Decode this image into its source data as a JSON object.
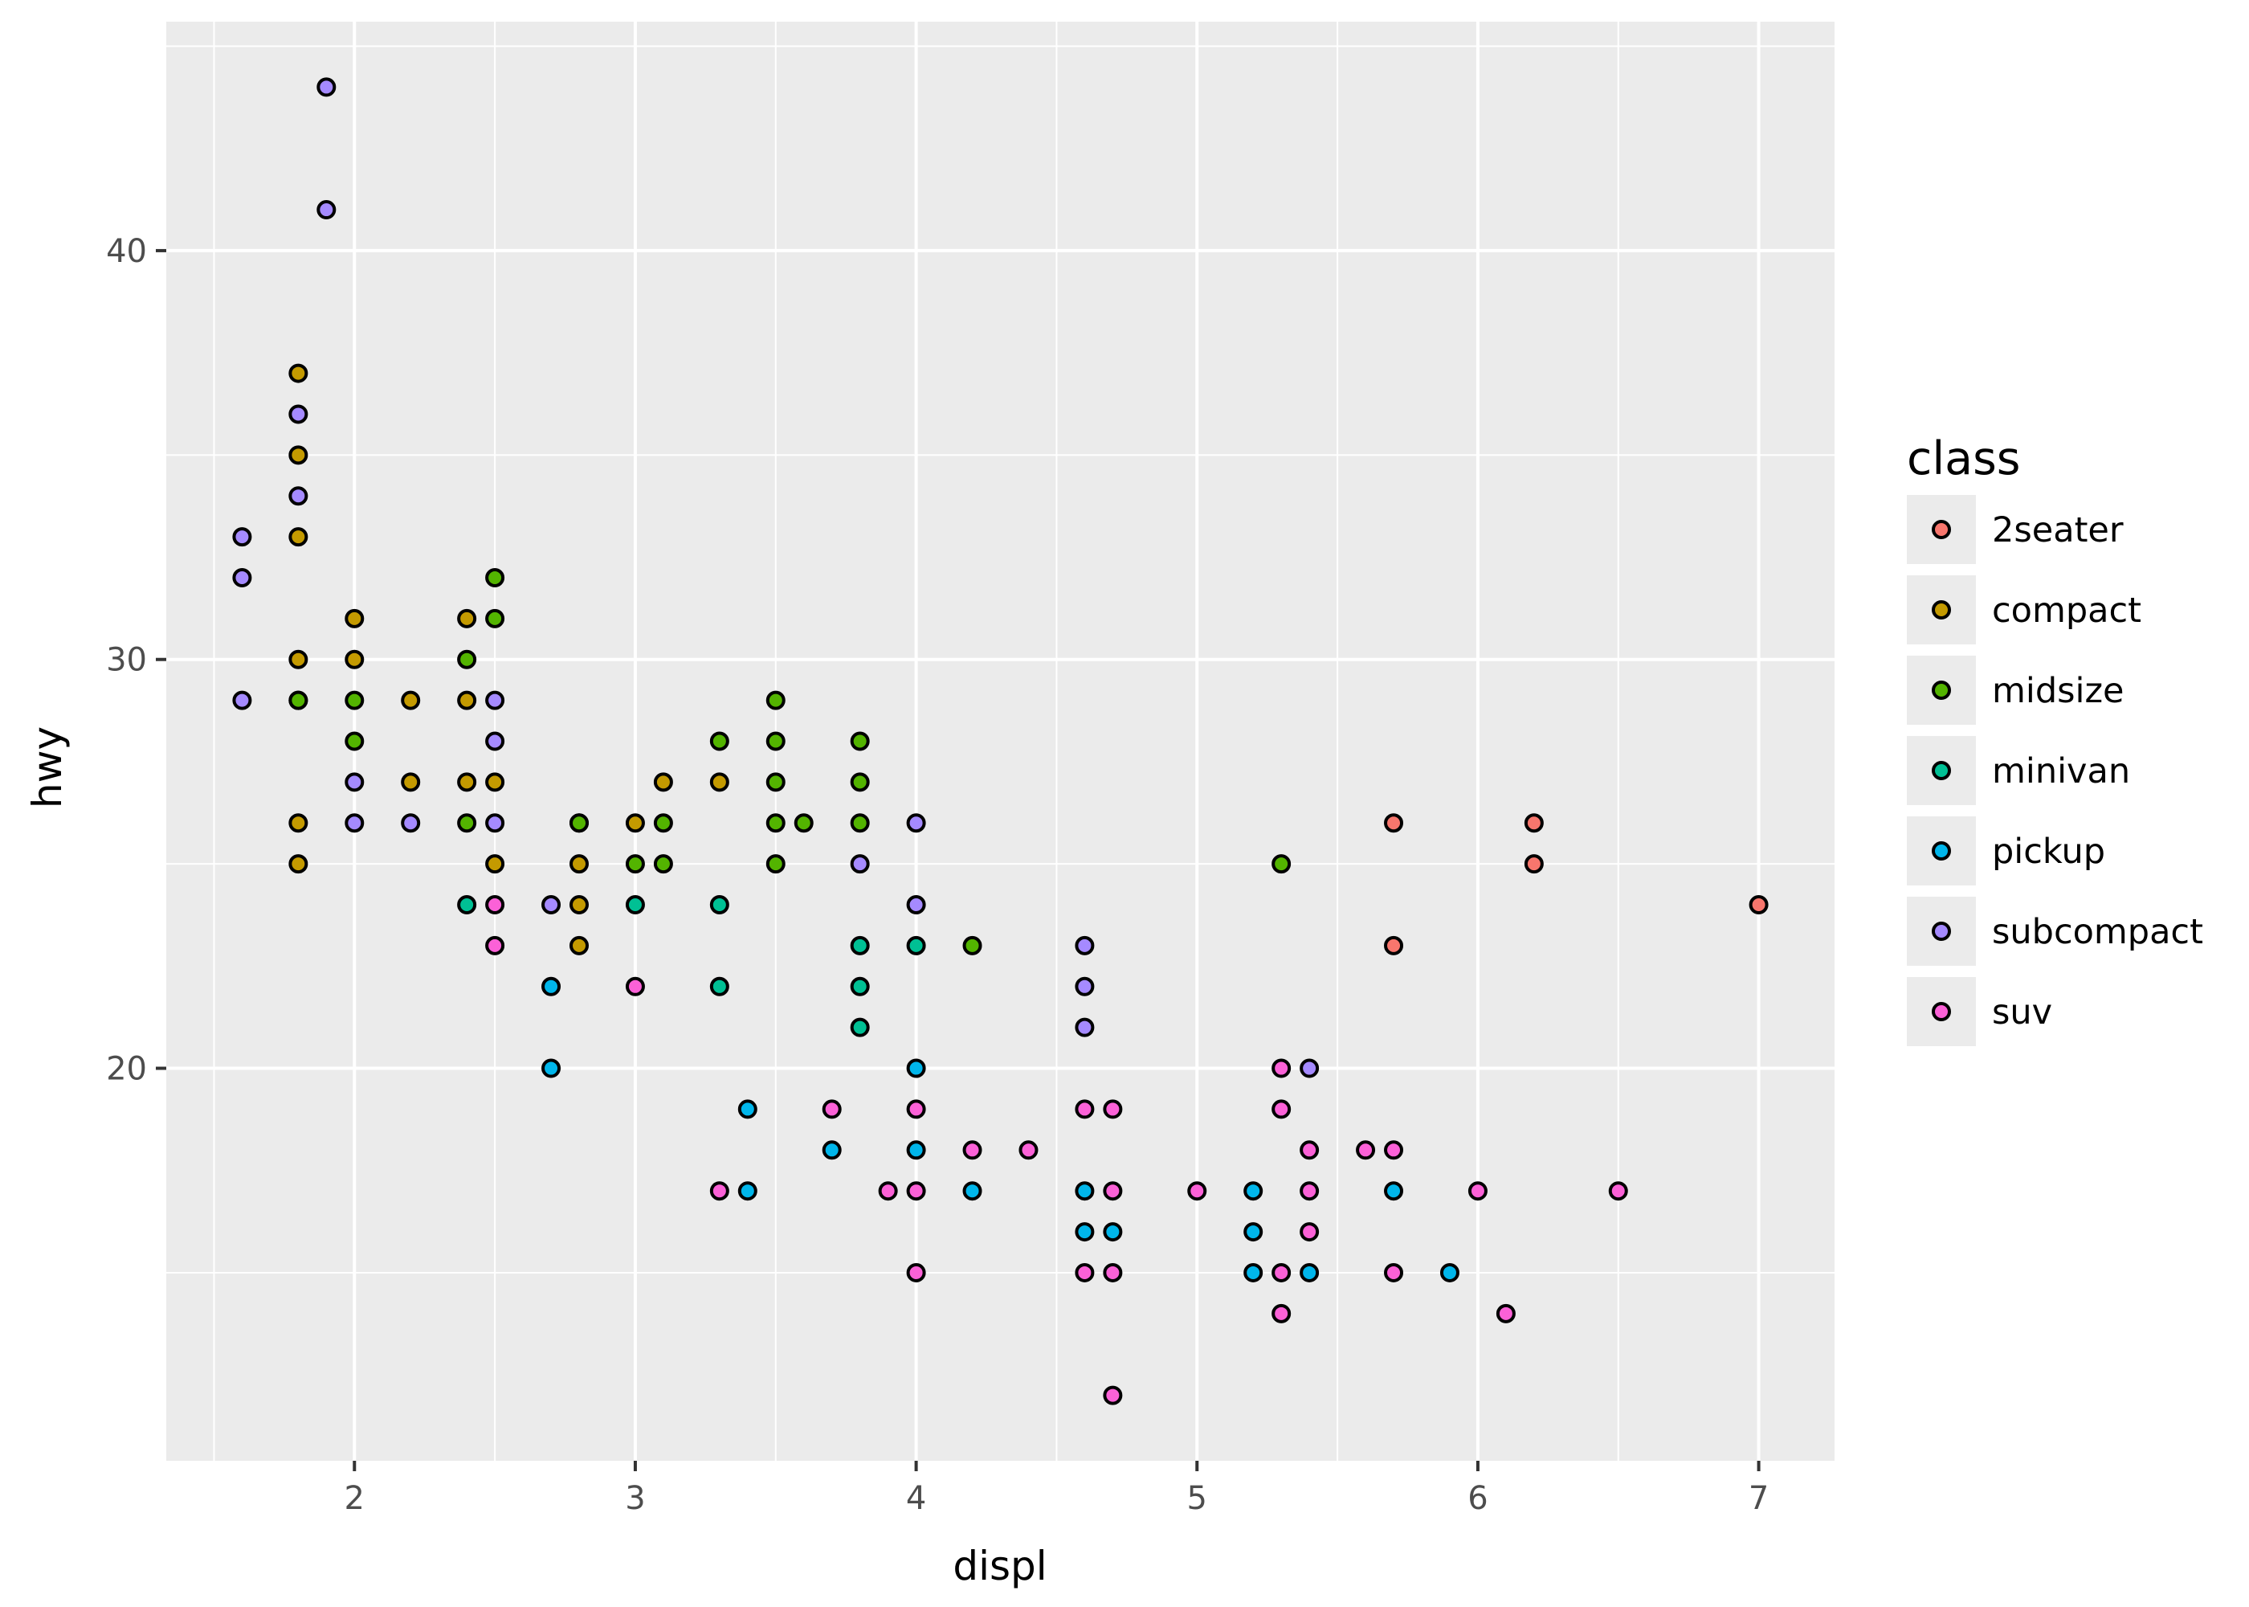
{
  "chart_data": {
    "type": "scatter",
    "title": "",
    "xlabel": "displ",
    "ylabel": "hwy",
    "xlim": [
      1.33,
      7.27
    ],
    "ylim": [
      10.4,
      45.6
    ],
    "x_ticks": [
      2,
      3,
      4,
      5,
      6,
      7
    ],
    "y_ticks": [
      20,
      30,
      40
    ],
    "grid": true,
    "legend": {
      "title": "class",
      "position": "right"
    },
    "series": [
      {
        "name": "2seater",
        "color": "#F8766D",
        "points": [
          [
            5.7,
            26
          ],
          [
            5.7,
            23
          ],
          [
            6.2,
            26
          ],
          [
            6.2,
            25
          ],
          [
            7.0,
            24
          ]
        ]
      },
      {
        "name": "compact",
        "color": "#C49A00",
        "points": [
          [
            1.8,
            37
          ],
          [
            1.8,
            35
          ],
          [
            1.8,
            33
          ],
          [
            1.8,
            30
          ],
          [
            1.8,
            29
          ],
          [
            1.8,
            26
          ],
          [
            1.8,
            25
          ],
          [
            2.0,
            31
          ],
          [
            2.0,
            30
          ],
          [
            2.2,
            29
          ],
          [
            2.2,
            27
          ],
          [
            2.4,
            31
          ],
          [
            2.4,
            29
          ],
          [
            2.4,
            27
          ],
          [
            2.5,
            27
          ],
          [
            2.5,
            25
          ],
          [
            2.8,
            26
          ],
          [
            2.8,
            25
          ],
          [
            2.8,
            24
          ],
          [
            2.8,
            23
          ],
          [
            3.0,
            26
          ],
          [
            3.1,
            27
          ],
          [
            3.3,
            27
          ]
        ]
      },
      {
        "name": "midsize",
        "color": "#53B400",
        "points": [
          [
            1.8,
            29
          ],
          [
            2.0,
            29
          ],
          [
            2.0,
            28
          ],
          [
            2.4,
            30
          ],
          [
            2.4,
            26
          ],
          [
            2.5,
            32
          ],
          [
            2.5,
            31
          ],
          [
            2.8,
            26
          ],
          [
            3.0,
            25
          ],
          [
            3.1,
            26
          ],
          [
            3.1,
            25
          ],
          [
            3.3,
            28
          ],
          [
            3.5,
            29
          ],
          [
            3.5,
            28
          ],
          [
            3.5,
            27
          ],
          [
            3.5,
            26
          ],
          [
            3.5,
            25
          ],
          [
            3.6,
            26
          ],
          [
            3.8,
            28
          ],
          [
            3.8,
            27
          ],
          [
            3.8,
            26
          ],
          [
            4.2,
            23
          ],
          [
            5.3,
            25
          ]
        ]
      },
      {
        "name": "minivan",
        "color": "#00C094",
        "points": [
          [
            2.4,
            24
          ],
          [
            3.0,
            24
          ],
          [
            3.3,
            24
          ],
          [
            3.3,
            22
          ],
          [
            3.8,
            23
          ],
          [
            3.8,
            22
          ],
          [
            3.8,
            21
          ],
          [
            4.0,
            23
          ]
        ]
      },
      {
        "name": "pickup",
        "color": "#00B6EB",
        "points": [
          [
            2.7,
            22
          ],
          [
            2.7,
            20
          ],
          [
            3.4,
            19
          ],
          [
            3.4,
            17
          ],
          [
            3.7,
            18
          ],
          [
            4.0,
            20
          ],
          [
            4.0,
            18
          ],
          [
            4.2,
            17
          ],
          [
            4.6,
            17
          ],
          [
            4.6,
            16
          ],
          [
            4.7,
            16
          ],
          [
            5.2,
            17
          ],
          [
            5.2,
            16
          ],
          [
            5.2,
            15
          ],
          [
            5.4,
            15
          ],
          [
            5.7,
            17
          ],
          [
            5.9,
            15
          ]
        ]
      },
      {
        "name": "subcompact",
        "color": "#A58AFF",
        "points": [
          [
            1.6,
            33
          ],
          [
            1.6,
            32
          ],
          [
            1.6,
            29
          ],
          [
            1.8,
            36
          ],
          [
            1.8,
            34
          ],
          [
            1.9,
            44
          ],
          [
            1.9,
            41
          ],
          [
            2.0,
            27
          ],
          [
            2.0,
            26
          ],
          [
            2.2,
            26
          ],
          [
            2.5,
            29
          ],
          [
            2.5,
            28
          ],
          [
            2.5,
            26
          ],
          [
            2.7,
            24
          ],
          [
            3.8,
            25
          ],
          [
            4.0,
            26
          ],
          [
            4.0,
            24
          ],
          [
            4.6,
            23
          ],
          [
            4.6,
            22
          ],
          [
            4.6,
            21
          ],
          [
            5.4,
            20
          ]
        ]
      },
      {
        "name": "suv",
        "color": "#FB61D7",
        "points": [
          [
            2.5,
            24
          ],
          [
            2.5,
            23
          ],
          [
            3.0,
            22
          ],
          [
            3.3,
            17
          ],
          [
            3.7,
            19
          ],
          [
            3.9,
            17
          ],
          [
            4.0,
            19
          ],
          [
            4.0,
            17
          ],
          [
            4.0,
            15
          ],
          [
            4.2,
            18
          ],
          [
            4.4,
            18
          ],
          [
            4.6,
            19
          ],
          [
            4.6,
            15
          ],
          [
            4.7,
            19
          ],
          [
            4.7,
            17
          ],
          [
            4.7,
            15
          ],
          [
            4.7,
            12
          ],
          [
            5.0,
            17
          ],
          [
            5.3,
            20
          ],
          [
            5.3,
            19
          ],
          [
            5.3,
            15
          ],
          [
            5.3,
            14
          ],
          [
            5.4,
            18
          ],
          [
            5.4,
            17
          ],
          [
            5.4,
            16
          ],
          [
            5.6,
            18
          ],
          [
            5.7,
            18
          ],
          [
            5.7,
            15
          ],
          [
            6.0,
            17
          ],
          [
            6.1,
            14
          ],
          [
            6.5,
            17
          ]
        ]
      }
    ]
  }
}
